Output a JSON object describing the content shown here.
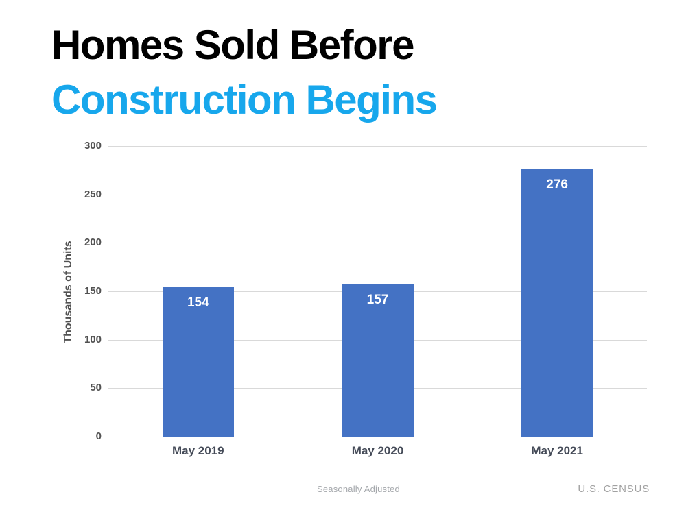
{
  "header": {
    "title_line1": "Homes Sold Before",
    "title_line2": "Construction Begins"
  },
  "chart_data": {
    "type": "bar",
    "title": "Homes Sold Before Construction Begins",
    "categories": [
      "May 2019",
      "May 2020",
      "May 2021"
    ],
    "values": [
      154,
      157,
      276
    ],
    "xlabel": "",
    "ylabel": "Thousands of Units",
    "ylim": [
      0,
      300
    ],
    "yticks": [
      0,
      50,
      100,
      150,
      200,
      250,
      300
    ],
    "grid": "horizontal-only",
    "legend": "none",
    "bar_color": "#4472C4",
    "value_label_color": "#FFFFFF"
  },
  "footer": {
    "note": "Seasonally Adjusted",
    "source": "U.S. CENSUS"
  },
  "colors": {
    "title": "#000000",
    "subtitle_accent": "#17A7EC",
    "bar": "#4472C4",
    "gridline": "#D9D9D9",
    "axis_text": "#515151",
    "category_text": "#454B58",
    "footer_text": "#A1A1A1"
  }
}
